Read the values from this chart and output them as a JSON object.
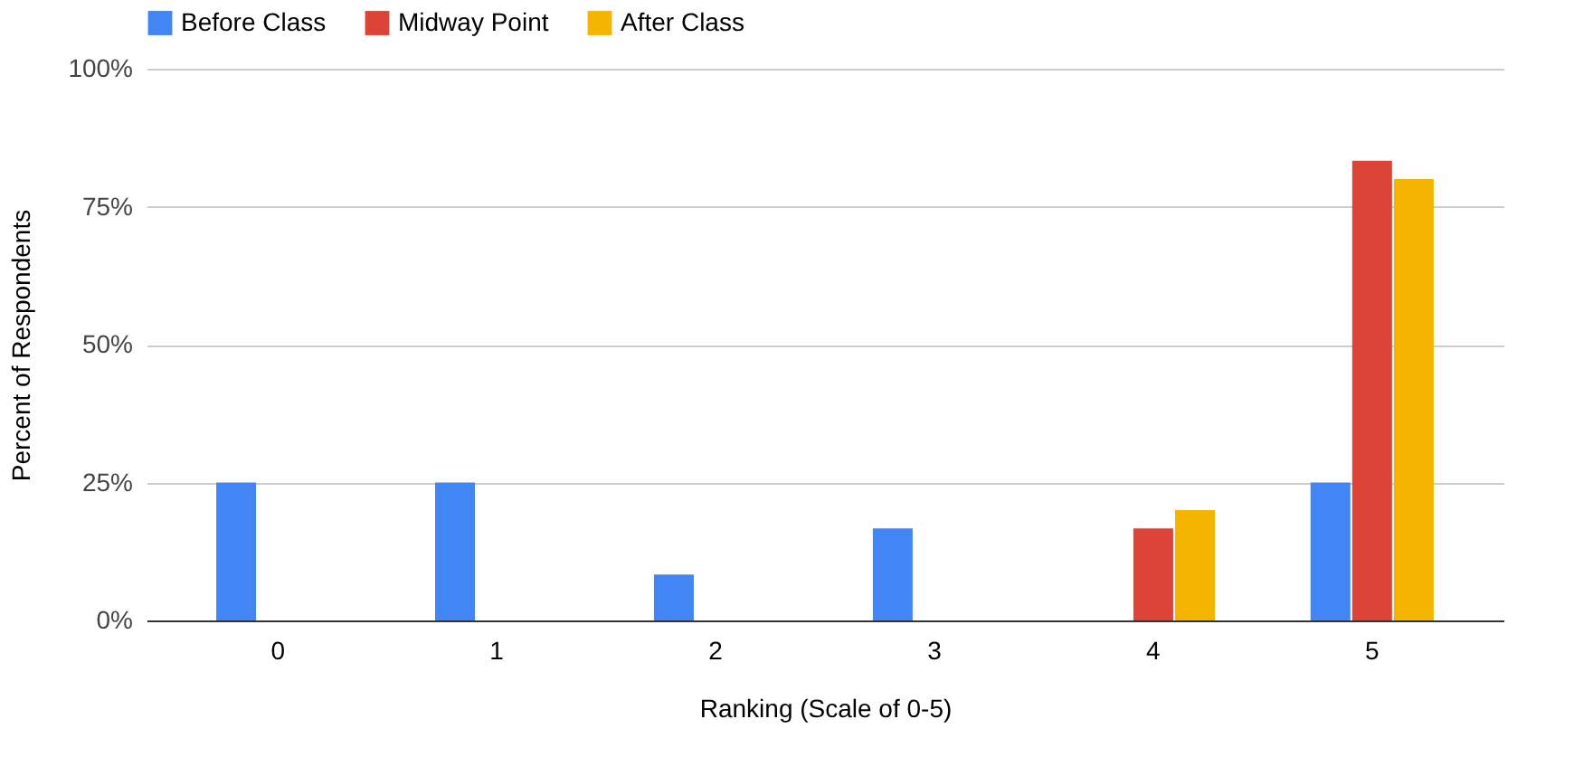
{
  "chart_data": {
    "type": "bar",
    "xlabel": "Ranking (Scale of 0-5)",
    "ylabel": "Percent of Respondents",
    "categories": [
      "0",
      "1",
      "2",
      "3",
      "4",
      "5"
    ],
    "series": [
      {
        "name": "Before Class",
        "color": "#4285f4",
        "values": [
          25,
          25,
          8.3,
          16.7,
          0,
          25
        ]
      },
      {
        "name": "Midway Point",
        "color": "#db4437",
        "values": [
          0,
          0,
          0,
          0,
          16.7,
          83.3
        ]
      },
      {
        "name": "After Class",
        "color": "#f4b400",
        "values": [
          0,
          0,
          0,
          0,
          20,
          80
        ]
      }
    ],
    "ylim": [
      0,
      100
    ],
    "yticks": [
      {
        "value": 0,
        "label": "0%"
      },
      {
        "value": 25,
        "label": "25%"
      },
      {
        "value": 50,
        "label": "50%"
      },
      {
        "value": 75,
        "label": "75%"
      },
      {
        "value": 100,
        "label": "100%"
      }
    ],
    "grid": "y",
    "legend": "top"
  }
}
